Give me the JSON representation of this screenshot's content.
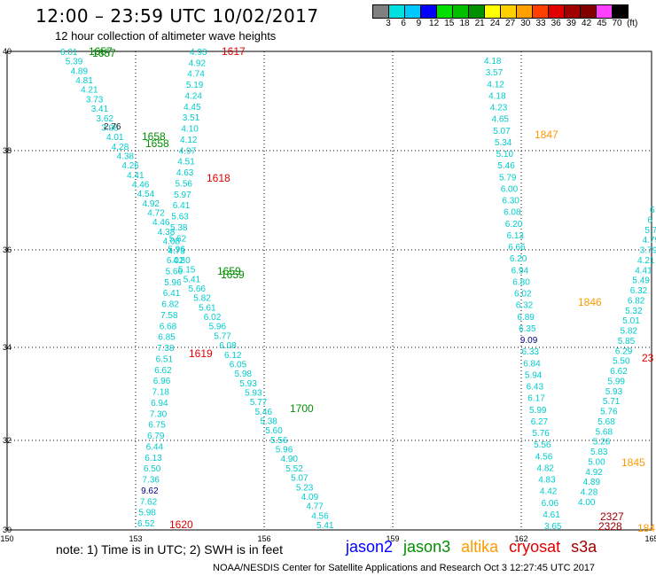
{
  "header": {
    "title": "12:00 – 23:59 UTC 10/02/2017",
    "subtitle": "12 hour collection of altimeter wave heights"
  },
  "legend": {
    "colors": [
      "#808080",
      "#00e0e0",
      "#00c8ff",
      "#0000ff",
      "#00e000",
      "#00c000",
      "#009000",
      "#ffff00",
      "#ffd000",
      "#ffa000",
      "#ff4000",
      "#e00000",
      "#a00000",
      "#800000",
      "#ff40ff",
      "#000000"
    ],
    "labels": [
      "3",
      "6",
      "9",
      "12",
      "15",
      "18",
      "21",
      "24",
      "27",
      "30",
      "33",
      "36",
      "39",
      "42",
      "45",
      "70",
      "(ft)"
    ]
  },
  "axes": {
    "x_ticks": [
      "150",
      "153",
      "156",
      "159",
      "162",
      "165"
    ],
    "y_ticks": [
      "40",
      "38",
      "36",
      "34",
      "32",
      "30"
    ]
  },
  "swh_labels": {
    "cyan": "#00cccc",
    "navy": "#000080",
    "black": "#222222",
    "track1": [
      "6.01",
      "5.39",
      "4.89",
      "4.81",
      "4.21",
      "3.73",
      "3.41",
      "3.62",
      "3.98",
      "4.01",
      "4.28",
      "4.38",
      "4.26",
      "4.41",
      "4.46",
      "4.54",
      "4.92",
      "4.72",
      "4.46",
      "4.38",
      "4.08",
      "4.73",
      "4.80",
      "5.15",
      "5.41",
      "5.66",
      "5.82",
      "5.61",
      "6.02",
      "5.96",
      "5.77",
      "6.08",
      "6.12",
      "6.05",
      "5.98",
      "5.93",
      "5.93",
      "5.77",
      "5.46",
      "5.38",
      "5.60",
      "5.56",
      "5.96",
      "4.90",
      "5.52",
      "5.07",
      "5.23",
      "4.09",
      "4.77",
      "4.56",
      "5.41"
    ],
    "track1_extra": [
      "2.76"
    ],
    "track2": [
      "4.93",
      "4.92",
      "4.74",
      "5.19",
      "4.24",
      "4.45",
      "3.51",
      "4.10",
      "4.12",
      "4.97",
      "4.51",
      "4.63",
      "5.56",
      "5.97",
      "6.41",
      "5.63",
      "5.38",
      "5.62",
      "5.96",
      "6.02",
      "5.66",
      "5.96",
      "6.41",
      "6.82",
      "7.58",
      "6.68",
      "6.85",
      "7.38",
      "6.51",
      "6.62",
      "6.96",
      "7.18",
      "6.94",
      "7.30",
      "6.75",
      "6.79",
      "6.44",
      "6.13",
      "6.50",
      "7.36",
      "9.62",
      "7.62",
      "5.98",
      "6.52"
    ],
    "track3": [
      "4.18",
      "3.57",
      "4.12",
      "4.18",
      "4.23",
      "4.65",
      "5.07",
      "5.34",
      "5.10",
      "5.46",
      "5.79",
      "6.00",
      "6.30",
      "6.08",
      "6.20",
      "6.13",
      "6.66",
      "6.20",
      "6.94",
      "6.80",
      "6.02",
      "6.32",
      "6.89",
      "6.35",
      "9.09",
      "6.33",
      "6.84",
      "5.94",
      "6.43",
      "6.17",
      "5.99",
      "6.27",
      "5.76",
      "5.56",
      "4.56",
      "4.82",
      "4.83",
      "4.42",
      "6.06",
      "4.61",
      "3.65"
    ],
    "track4": [
      "6",
      "6",
      "5.7",
      "4.79",
      "3.79",
      "4.21",
      "4.41",
      "5.49",
      "6.32",
      "6.82",
      "5.32",
      "5.01",
      "5.82",
      "5.85",
      "6.29",
      "5.50",
      "6.62",
      "5.99",
      "5.93",
      "5.71",
      "5.76",
      "5.68",
      "5.68",
      "5.26",
      "5.83",
      "5.00",
      "4.92",
      "4.89",
      "4.28",
      "4.00"
    ]
  },
  "pass_times": [
    {
      "text": "1657",
      "sat": "jason3"
    },
    {
      "text": "1617",
      "sat": "cryosat"
    },
    {
      "text": "1658",
      "sat": "jason3"
    },
    {
      "text": "1618",
      "sat": "cryosat"
    },
    {
      "text": "1659",
      "sat": "jason3"
    },
    {
      "text": "1619",
      "sat": "cryosat"
    },
    {
      "text": "1700",
      "sat": "jason3"
    },
    {
      "text": "1620",
      "sat": "cryosat"
    },
    {
      "text": "1847",
      "sat": "altika"
    },
    {
      "text": "1846",
      "sat": "altika"
    },
    {
      "text": "1845",
      "sat": "altika"
    },
    {
      "text": "184",
      "sat": "altika"
    },
    {
      "text": "23",
      "sat": "cryosat"
    },
    {
      "text": "2327",
      "sat": "s3a"
    },
    {
      "text": "2328",
      "sat": "s3a"
    }
  ],
  "satellites": [
    {
      "key": "jason2",
      "label": "jason2",
      "color": "#0000ff"
    },
    {
      "key": "jason3",
      "label": "jason3",
      "color": "#009000"
    },
    {
      "key": "altika",
      "label": "altika",
      "color": "#ff9900"
    },
    {
      "key": "cryosat",
      "label": "cryosat",
      "color": "#e00000"
    },
    {
      "key": "s3a",
      "label": "s3a",
      "color": "#a00000"
    }
  ],
  "footer": {
    "note": "note:  1) Time is in UTC;  2) SWH is in feet",
    "credit": "NOAA/NESDIS Center for Satellite Applications and Research    Oct  3  12:27:45 UTC 2017"
  }
}
